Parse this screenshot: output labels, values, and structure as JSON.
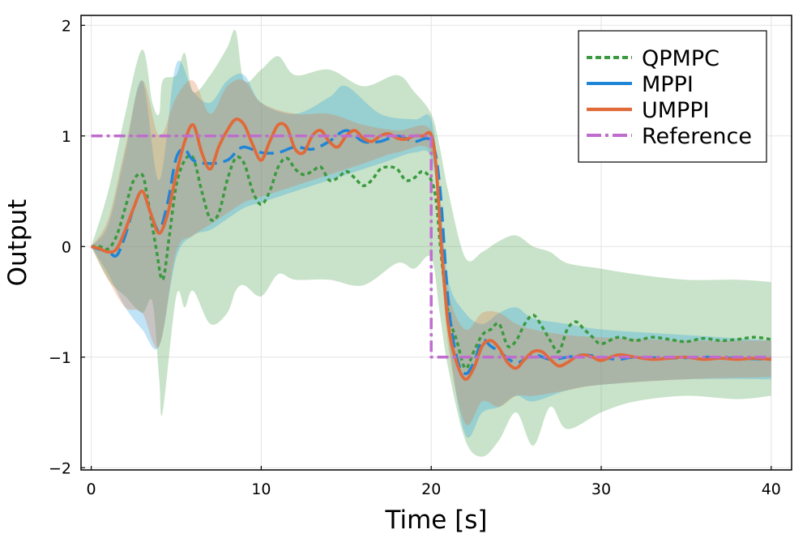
{
  "chart_data": {
    "type": "line",
    "title": "",
    "xlabel": "Time [s]",
    "ylabel": "Output",
    "xlim": [
      -0.6,
      41.2
    ],
    "ylim": [
      -2.02,
      2.09
    ],
    "grid": true,
    "legend_position": "top-right",
    "x_ticks": [
      0,
      10,
      20,
      30,
      40
    ],
    "x_tick_labels": [
      "0",
      "10",
      "20",
      "30",
      "40"
    ],
    "y_ticks": [
      -2,
      -1,
      0,
      1,
      2
    ],
    "y_tick_labels": [
      "−2",
      "−1",
      "0",
      "1",
      "2"
    ],
    "bands": [
      {
        "name": "QPMPC band",
        "color": "#3a9a3e",
        "opacity": 0.28,
        "x": [
          0,
          1,
          2,
          3,
          3.6,
          4,
          4.2,
          5,
          5.5,
          6,
          7,
          8,
          8.5,
          9,
          10,
          11,
          12,
          14,
          16,
          18,
          19,
          20,
          20.5,
          21,
          22,
          23,
          24,
          25,
          26,
          27,
          28,
          30,
          32,
          35,
          38,
          40
        ],
        "upper": [
          0,
          0.5,
          1.2,
          1.78,
          1.3,
          1.2,
          1.5,
          1.55,
          1.75,
          1.4,
          1.55,
          1.8,
          1.95,
          1.5,
          1.6,
          1.72,
          1.55,
          1.6,
          1.45,
          1.55,
          1.4,
          1.2,
          0.9,
          0.5,
          -0.1,
          -0.05,
          0.05,
          0.1,
          0.0,
          -0.05,
          -0.15,
          -0.2,
          -0.25,
          -0.3,
          -0.3,
          -0.32
        ],
        "lower": [
          0,
          -0.3,
          -0.45,
          -0.6,
          -0.5,
          -1.2,
          -1.5,
          -0.45,
          -0.55,
          -0.4,
          -0.7,
          -0.6,
          -0.4,
          -0.35,
          -0.45,
          -0.25,
          -0.3,
          -0.3,
          -0.35,
          -0.15,
          -0.2,
          -0.1,
          -0.6,
          -1.1,
          -1.75,
          -1.9,
          -1.75,
          -1.5,
          -1.8,
          -1.45,
          -1.65,
          -1.5,
          -1.4,
          -1.35,
          -1.38,
          -1.35
        ]
      },
      {
        "name": "MPPI band",
        "color": "#1e9be6",
        "opacity": 0.28,
        "x": [
          0,
          1,
          2,
          3,
          4,
          5,
          6,
          7,
          8,
          9,
          10,
          12,
          14,
          15,
          17,
          19,
          20,
          20.5,
          21,
          22,
          23,
          24,
          25,
          26,
          28,
          30,
          35,
          40
        ],
        "upper": [
          0,
          0.2,
          0.85,
          1.5,
          0.6,
          1.65,
          1.4,
          1.3,
          1.5,
          1.55,
          1.3,
          1.2,
          1.35,
          1.45,
          1.2,
          1.15,
          1.15,
          0.5,
          -0.3,
          -0.6,
          -0.7,
          -0.6,
          -0.55,
          -0.65,
          -0.7,
          -0.75,
          -0.8,
          -0.85
        ],
        "lower": [
          0,
          -0.25,
          -0.55,
          -0.75,
          -0.9,
          -0.1,
          0.1,
          0.15,
          0.25,
          0.35,
          0.4,
          0.5,
          0.6,
          0.65,
          0.75,
          0.85,
          0.8,
          0.2,
          -0.8,
          -1.7,
          -1.5,
          -1.45,
          -1.35,
          -1.4,
          -1.3,
          -1.25,
          -1.2,
          -1.2
        ]
      },
      {
        "name": "UMPPI band",
        "color": "#e0723a",
        "opacity": 0.28,
        "x": [
          0,
          1,
          2,
          3,
          4,
          5,
          6,
          7,
          8,
          9,
          10,
          12,
          14,
          16,
          18,
          20,
          20.5,
          21,
          22,
          23,
          24,
          25,
          26,
          28,
          30,
          35,
          40
        ],
        "upper": [
          0,
          0.25,
          0.9,
          1.5,
          1.0,
          1.35,
          1.5,
          1.2,
          1.45,
          1.5,
          1.3,
          1.2,
          1.2,
          1.1,
          1.05,
          1.05,
          0.4,
          -0.4,
          -0.75,
          -0.6,
          -0.6,
          -0.7,
          -0.75,
          -0.8,
          -0.82,
          -0.85,
          -0.85
        ],
        "lower": [
          0,
          -0.3,
          -0.55,
          -0.6,
          -0.9,
          -0.05,
          0.1,
          0.2,
          0.3,
          0.4,
          0.45,
          0.55,
          0.65,
          0.75,
          0.85,
          0.85,
          0.1,
          -0.9,
          -1.6,
          -1.4,
          -1.45,
          -1.35,
          -1.35,
          -1.3,
          -1.25,
          -1.2,
          -1.18
        ]
      }
    ],
    "series": [
      {
        "name": "QPMPC",
        "color": "#3a9a3e",
        "dash": "5,4",
        "width": 3.5,
        "x": [
          0,
          0.5,
          1,
          1.5,
          2,
          2.5,
          3,
          3.3,
          3.8,
          4.2,
          4.6,
          5,
          5.5,
          6,
          6.5,
          7,
          7.5,
          8,
          8.5,
          9,
          9.5,
          10,
          10.5,
          11,
          11.5,
          12,
          12.5,
          13,
          13.5,
          14,
          14.5,
          15,
          15.5,
          16,
          16.5,
          17,
          17.5,
          18,
          18.5,
          19,
          19.5,
          20,
          20.3,
          20.6,
          21,
          21.5,
          22,
          22.5,
          23,
          23.5,
          24,
          24.5,
          25,
          25.5,
          26,
          26.5,
          27,
          27.5,
          28,
          28.5,
          29,
          29.5,
          30,
          31,
          32,
          33,
          34,
          35,
          36,
          37,
          38,
          39,
          40
        ],
        "y": [
          0,
          0,
          -0.02,
          0.1,
          0.35,
          0.6,
          0.65,
          0.45,
          0.0,
          -0.3,
          0.1,
          0.55,
          0.78,
          0.8,
          0.5,
          0.25,
          0.3,
          0.6,
          0.8,
          0.75,
          0.5,
          0.38,
          0.5,
          0.72,
          0.8,
          0.7,
          0.65,
          0.68,
          0.72,
          0.6,
          0.62,
          0.68,
          0.62,
          0.55,
          0.6,
          0.7,
          0.72,
          0.7,
          0.6,
          0.62,
          0.68,
          0.6,
          0.4,
          -0.1,
          -0.6,
          -0.85,
          -1.1,
          -0.95,
          -0.8,
          -0.75,
          -0.7,
          -0.9,
          -0.85,
          -0.7,
          -0.62,
          -0.72,
          -0.85,
          -0.95,
          -0.75,
          -0.68,
          -0.75,
          -0.82,
          -0.88,
          -0.82,
          -0.85,
          -0.82,
          -0.84,
          -0.86,
          -0.83,
          -0.85,
          -0.84,
          -0.82,
          -0.84
        ]
      },
      {
        "name": "MPPI",
        "color": "#1f85d6",
        "dash": "18,8",
        "width": 3.5,
        "x": [
          0,
          1,
          1.5,
          2,
          2.5,
          3,
          3.5,
          4,
          4.5,
          5,
          5.5,
          6,
          7,
          8,
          8.5,
          9,
          10,
          11,
          12,
          13,
          14,
          15,
          16,
          17,
          18,
          19,
          20,
          20.5,
          21,
          21.5,
          22,
          22.5,
          23,
          23.5,
          24,
          25,
          26,
          27,
          28,
          29,
          30,
          31,
          32,
          34,
          36,
          38,
          40
        ],
        "y": [
          0,
          -0.05,
          -0.08,
          0.1,
          0.35,
          0.5,
          0.3,
          0.15,
          0.4,
          0.8,
          0.88,
          0.78,
          0.75,
          0.78,
          0.85,
          0.9,
          0.85,
          0.85,
          0.9,
          0.88,
          0.95,
          1.05,
          0.95,
          0.95,
          1.0,
          0.95,
          0.95,
          0.55,
          -0.5,
          -1.0,
          -1.15,
          -1.05,
          -0.85,
          -0.9,
          -0.95,
          -1.05,
          -0.98,
          -1.02,
          -1.0,
          -0.98,
          -1.0,
          -1.02,
          -1.0,
          -1.01,
          -1.0,
          -1.01,
          -1.02
        ]
      },
      {
        "name": "UMPPI",
        "color": "#e06a3a",
        "dash": "",
        "width": 3.8,
        "x": [
          0,
          0.5,
          1,
          1.5,
          2,
          2.5,
          3,
          3.5,
          4,
          4.5,
          5,
          5.5,
          6,
          6.5,
          7,
          7.5,
          8,
          8.5,
          9,
          9.5,
          10,
          10.5,
          11,
          11.5,
          12,
          12.5,
          13,
          13.5,
          14,
          14.5,
          15,
          15.5,
          16,
          16.5,
          17,
          17.5,
          18,
          18.5,
          19,
          19.5,
          20,
          20.3,
          20.6,
          21,
          21.5,
          22,
          22.5,
          23,
          23.5,
          24,
          24.5,
          25,
          25.5,
          26,
          26.5,
          27,
          27.5,
          28,
          28.5,
          29,
          29.5,
          30,
          31,
          32,
          33,
          34,
          35,
          36,
          37,
          38,
          39,
          40
        ],
        "y": [
          0,
          -0.02,
          -0.05,
          -0.02,
          0.15,
          0.35,
          0.5,
          0.3,
          0.12,
          0.3,
          0.65,
          0.95,
          1.1,
          0.85,
          0.7,
          0.9,
          1.05,
          1.15,
          1.1,
          0.92,
          0.78,
          0.95,
          1.1,
          1.08,
          0.88,
          0.85,
          1.0,
          1.05,
          0.95,
          0.9,
          1.0,
          1.05,
          0.98,
          0.95,
          1.0,
          1.02,
          0.98,
          0.97,
          1.0,
          1.0,
          1.01,
          0.7,
          0.0,
          -0.7,
          -1.05,
          -1.2,
          -1.1,
          -0.9,
          -0.85,
          -0.92,
          -1.05,
          -1.1,
          -1.02,
          -0.95,
          -0.95,
          -1.02,
          -1.08,
          -1.05,
          -1.0,
          -0.98,
          -1.0,
          -1.03,
          -0.98,
          -1.0,
          -1.02,
          -1.01,
          -1.0,
          -1.02,
          -1.01,
          -1.02,
          -1.01,
          -1.02
        ]
      },
      {
        "name": "Reference",
        "color": "#c06ccf",
        "dash": "14,5,4,5",
        "width": 3.5,
        "x": [
          0,
          20,
          20,
          40
        ],
        "y": [
          1,
          1,
          -1,
          -1
        ]
      }
    ]
  }
}
